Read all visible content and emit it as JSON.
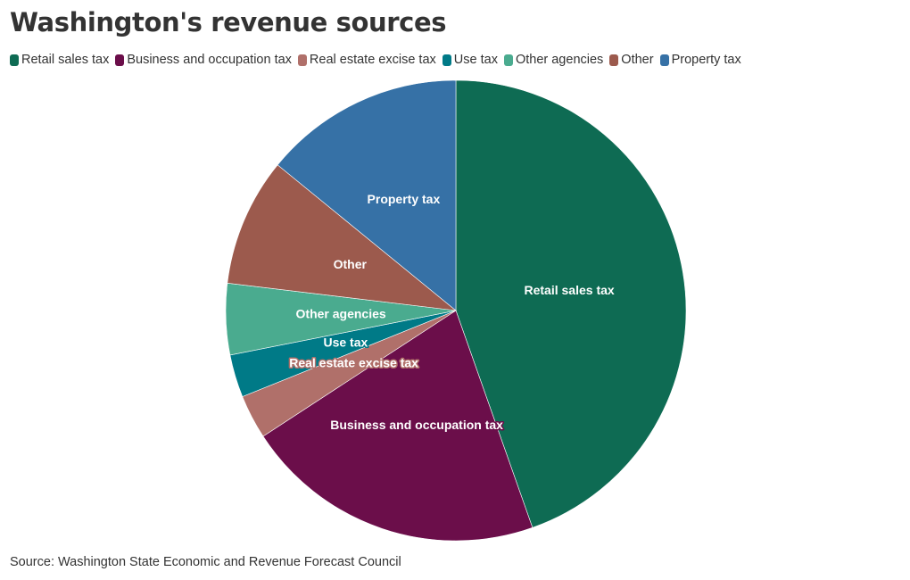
{
  "page": {
    "title": "Washington's revenue sources",
    "source": "Source: Washington State Economic and Revenue Forecast Council"
  },
  "chart_data": {
    "type": "pie",
    "title": "Washington's revenue sources",
    "legend_position": "top-left",
    "slices": [
      {
        "label": "Retail sales tax",
        "value": 44.6,
        "color": "#0e6b53"
      },
      {
        "label": "Business and occupation tax",
        "value": 21.2,
        "color": "#6b0e4a"
      },
      {
        "label": "Real estate excise tax",
        "value": 3.1,
        "color": "#b0706a"
      },
      {
        "label": "Use tax",
        "value": 3.0,
        "color": "#007a87"
      },
      {
        "label": "Other agencies",
        "value": 5.0,
        "color": "#4aab8f"
      },
      {
        "label": "Other",
        "value": 9.0,
        "color": "#9c5a4d"
      },
      {
        "label": "Property tax",
        "value": 14.1,
        "color": "#3671a6"
      }
    ]
  }
}
